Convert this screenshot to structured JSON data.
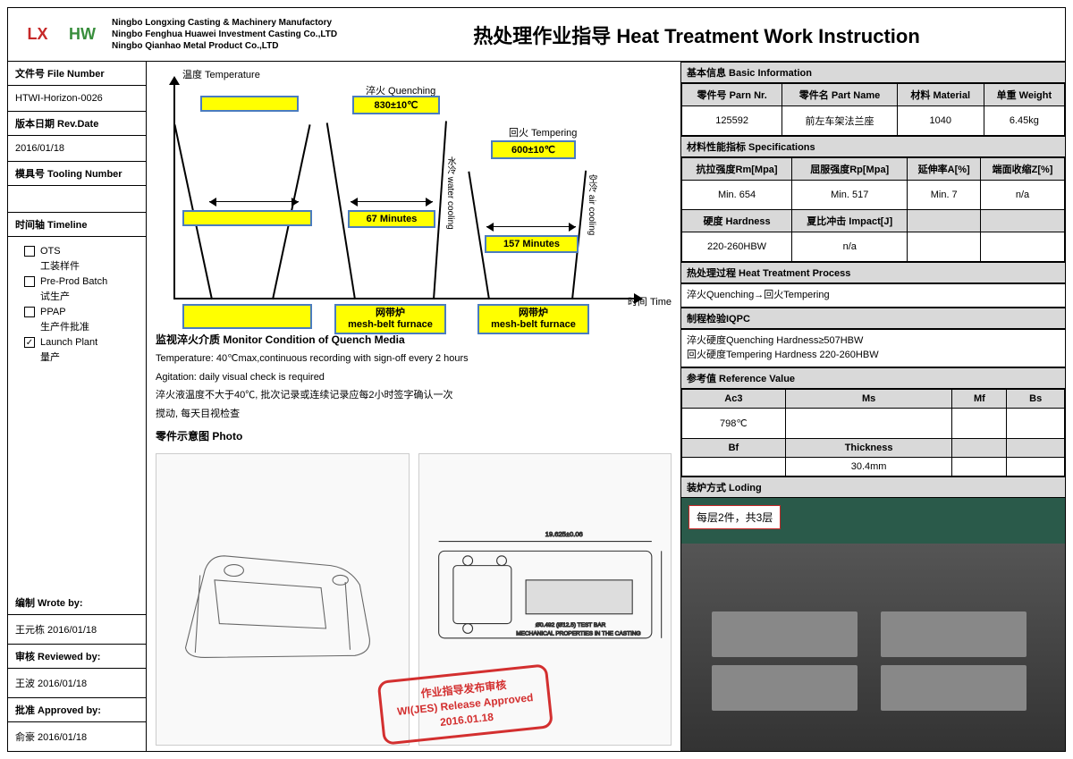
{
  "companies": [
    "Ningbo Longxing Casting & Machinery Manufactory",
    "Ningbo Fenghua Huawei Investment Casting Co.,LTD",
    "Ningbo Qianhao Metal Product Co.,LTD"
  ],
  "title": "热处理作业指导 Heat Treatment Work Instruction",
  "left": {
    "fileNum": {
      "h": "文件号 File Number",
      "v": "HTWI-Horizon-0026"
    },
    "revDate": {
      "h": "版本日期 Rev.Date",
      "v": "2016/01/18"
    },
    "tooling": {
      "h": "模具号 Tooling Number",
      "v": ""
    },
    "timeline": {
      "h": "时间轴 Timeline",
      "items": [
        {
          "k": "ots",
          "en": "OTS",
          "cn": "工装样件",
          "chk": false
        },
        {
          "k": "ppb",
          "en": "Pre-Prod Batch",
          "cn": "试生产",
          "chk": false
        },
        {
          "k": "ppap",
          "en": "PPAP",
          "cn": "生产件批准",
          "chk": false
        },
        {
          "k": "lp",
          "en": "Launch Plant",
          "cn": "量产",
          "chk": true
        }
      ]
    },
    "wrote": {
      "h": "编制 Wrote by:",
      "v": "王元栋 2016/01/18"
    },
    "reviewed": {
      "h": "审核 Reviewed by:",
      "v": "王波 2016/01/18"
    },
    "approved": {
      "h": "批准 Approved by:",
      "v": "俞豪 2016/01/18"
    }
  },
  "chart": {
    "yAxis": "温度 Temperature",
    "xAxis": "时间 Time",
    "quench": {
      "title": "淬火 Quenching",
      "temp": "830±10℃",
      "time": "67 Minutes",
      "furnace": "网带炉\nmesh-belt furnace",
      "cool": "水冷 water cooling"
    },
    "temper": {
      "title": "回火 Tempering",
      "temp": "600±10℃",
      "time": "157 Minutes",
      "furnace": "网带炉\nmesh-belt furnace",
      "cool": "空冷 air cooling"
    }
  },
  "monitor": {
    "h": "监视淬火介质 Monitor Condition of Quench Media",
    "l1": "Temperature: 40℃max,continuous recording with sign-off every 2 hours",
    "l2": "Agitation: daily visual check is required",
    "l3": "淬火液温度不大于40℃, 批次记录或连续记录应每2小时签字确认一次",
    "l4": "搅动, 每天目视检查"
  },
  "photoH": "零件示意图 Photo",
  "stamp": {
    "l1": "作业指导发布审核",
    "l2": "WI(JES) Release Approved",
    "l3": "2016.01.18"
  },
  "basic": {
    "h": "基本信息 Basic Information",
    "cols": [
      "零件号 Parn Nr.",
      "零件名 Part Name",
      "材料 Material",
      "单重 Weight"
    ],
    "vals": [
      "125592",
      "前左车架法兰座",
      "1040",
      "6.45kg"
    ]
  },
  "specs": {
    "h": "材料性能指标 Specifications",
    "r1h": [
      "抗拉强度Rm[Mpa]",
      "屈服强度Rp[Mpa]",
      "延伸率A[%]",
      "端面收缩Z[%]"
    ],
    "r1v": [
      "Min. 654",
      "Min. 517",
      "Min. 7",
      "n/a"
    ],
    "r2h": [
      "硬度 Hardness",
      "夏比冲击 Impact[J]"
    ],
    "r2v": [
      "220-260HBW",
      "n/a"
    ]
  },
  "process": {
    "h": "热处理过程 Heat Treatment Process",
    "v": "淬火Quenching→回火Tempering"
  },
  "iqpc": {
    "h": "制程检验IQPC",
    "l1": "淬火硬度Quenching Hardness≥507HBW",
    "l2": "回火硬度Tempering Hardness 220-260HBW"
  },
  "ref": {
    "h": "参考值 Reference Value",
    "r1h": [
      "Ac3",
      "Ms",
      "Mf",
      "Bs"
    ],
    "r1v": [
      "798℃",
      "",
      "",
      ""
    ],
    "r2h": [
      "Bf",
      "Thickness"
    ],
    "r2v": [
      "",
      "30.4mm"
    ]
  },
  "loding": {
    "h": "装炉方式 Loding",
    "lbl": "每层2件，共3层"
  }
}
